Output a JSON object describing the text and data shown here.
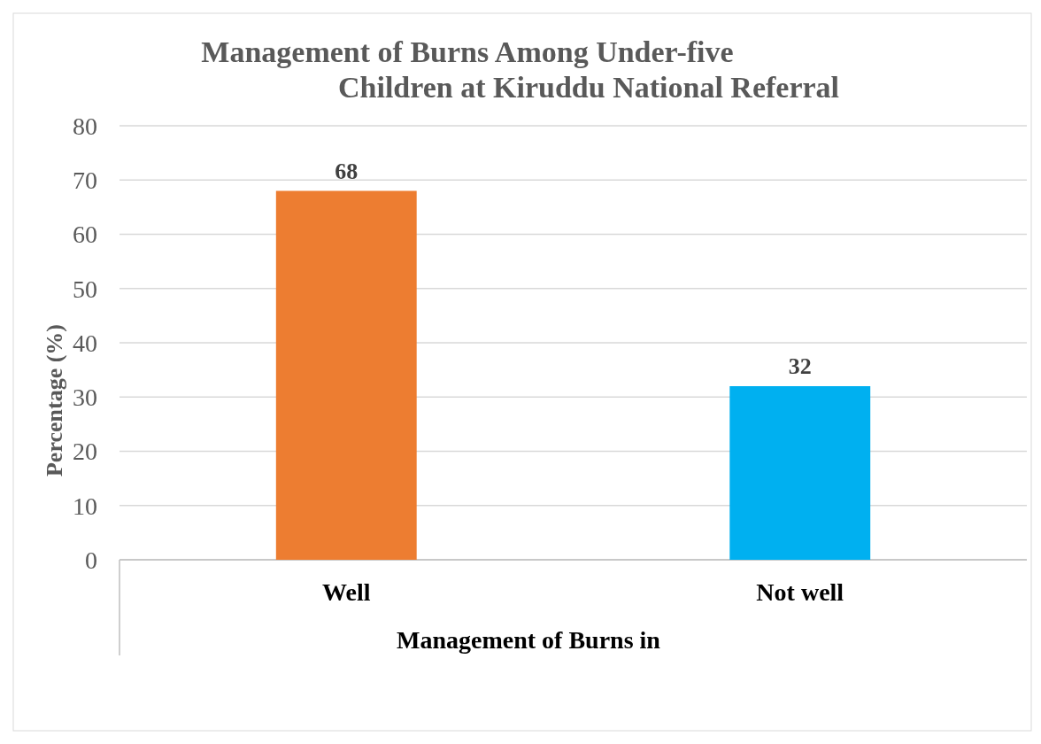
{
  "chart_data": {
    "type": "bar",
    "title": "Management of Burns Among Under-five\nChildren at Kiruddu National Referral",
    "xlabel": "Management of Burns in",
    "ylabel": "Percentage (%)",
    "categories": [
      "Well",
      "Not well"
    ],
    "values": [
      68,
      32
    ],
    "colors": [
      "#ed7d31",
      "#00b0f0"
    ],
    "ylim": [
      0,
      80
    ],
    "yticks": [
      0,
      10,
      20,
      30,
      40,
      50,
      60,
      70,
      80
    ],
    "grid": "y",
    "data_labels": true
  }
}
